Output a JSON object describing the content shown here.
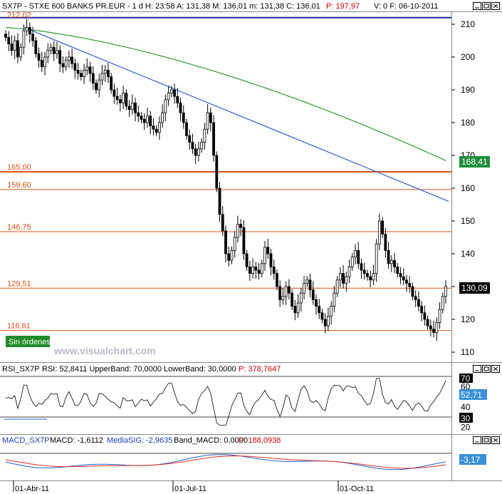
{
  "main_panel": {
    "header": {
      "symbol": "SX7P",
      "name": "STXE 600 BANKS PR.EUR",
      "timeframe": "1 d",
      "time": "H: 23:58",
      "high": "A: 131,38",
      "mid": "M: 136,01",
      "low": "m: 131,38",
      "close": "C: 136,01",
      "points": "P: 197,97",
      "volume": "V: 0",
      "date": "F: 06-10-2011"
    },
    "header_text": "SX7P - STXE 600 BANKS PR.EUR - 1 d H: 23:58 A: 131,38 M: 136,01 m: 131,38 C: 136,01",
    "header_points": "P: 197,97",
    "header_tail": "V: 0  F: 06-10-2011",
    "watermark": "www.visualchart.com",
    "orders_badge": "Sin órdenes",
    "ma_label": "168,41",
    "price_label": "130,09",
    "colors": {
      "ma": "#2e9b2e",
      "trend": "#2f5fd0",
      "levels": "#e05018",
      "ma_badge": "#1f8f3a",
      "price_badge": "#000000"
    }
  },
  "rsi_panel": {
    "title": "RSI_SX7P",
    "params": "RSI: 52,8411  UpperBand: 70,0000  LowerBand: 30,0000",
    "points": "P: 378,7647",
    "value_label": "52,71",
    "upper_label": "70",
    "lower_label": "30",
    "colors": {
      "badge": "#3a90d8"
    }
  },
  "macd_panel": {
    "title": "MACD_SX7P",
    "macd": "MACD: -1,6112",
    "signal": "MediaSIG: -2,9635",
    "band": "Band_MACD: 0,0000",
    "points": "P: 188,0938",
    "value_label": "-3,17",
    "colors": {
      "macd": "#2060d0",
      "signal": "#e03020",
      "badge": "#3a90d8"
    }
  },
  "chart_data": [
    {
      "type": "candlestick",
      "title": "SX7P - STXE 600 BANKS PR.EUR - 1 d",
      "x_ticks": [
        "01-Abr-11",
        "01-Jul-11",
        "01-Oct-11"
      ],
      "ylim": [
        110,
        214
      ],
      "y_ticks": [
        110,
        120,
        130,
        140,
        150,
        160,
        170,
        180,
        190,
        200,
        210
      ],
      "horizontal_levels": [
        {
          "label": "212,02",
          "value": 212.02
        },
        {
          "label": "165,00",
          "value": 165.0
        },
        {
          "label": "159,60",
          "value": 159.6
        },
        {
          "label": "146,75",
          "value": 146.75
        },
        {
          "label": "129,51",
          "value": 129.51
        },
        {
          "label": "116,61",
          "value": 116.61
        }
      ],
      "close_approx": [
        206,
        204,
        202,
        205,
        200,
        203,
        208,
        209,
        207,
        205,
        201,
        199,
        197,
        200,
        202,
        203,
        201,
        202,
        198,
        197,
        199,
        200,
        198,
        196,
        195,
        194,
        196,
        197,
        195,
        192,
        190,
        193,
        195,
        196,
        194,
        190,
        188,
        187,
        186,
        189,
        185,
        184,
        186,
        183,
        182,
        181,
        180,
        182,
        179,
        178,
        177,
        180,
        183,
        187,
        189,
        190,
        188,
        186,
        183,
        180,
        176,
        174,
        172,
        170,
        172,
        174,
        178,
        183,
        180,
        170,
        160,
        152,
        147,
        140,
        138,
        141,
        145,
        149,
        148,
        140,
        136,
        134,
        136,
        135,
        134,
        137,
        142,
        140,
        136,
        134,
        130,
        126,
        127,
        130,
        128,
        124,
        122,
        125,
        128,
        131,
        132,
        129,
        126,
        124,
        122,
        120,
        118,
        121,
        124,
        128,
        132,
        134,
        131,
        133,
        136,
        139,
        141,
        137,
        135,
        134,
        133,
        132,
        134,
        143,
        150,
        146,
        141,
        137,
        138,
        136,
        134,
        133,
        132,
        131,
        130,
        127,
        126,
        124,
        122,
        120,
        118,
        117,
        116,
        119,
        123,
        127,
        130
      ],
      "moving_average": {
        "label": "168,41",
        "start": 209,
        "end": 168.41
      },
      "trendline": {
        "from": 209,
        "to": 156
      }
    },
    {
      "type": "line",
      "title": "RSI_SX7P",
      "ylim": [
        20,
        70
      ],
      "y_ticks": [
        20,
        30,
        40,
        50,
        60,
        70
      ],
      "bands": {
        "upper": 70,
        "lower": 30
      },
      "last_value": 52.71
    },
    {
      "type": "line",
      "title": "MACD_SX7P",
      "series": [
        {
          "name": "MACD",
          "last": -1.6112
        },
        {
          "name": "MediaSIG",
          "last": -2.9635
        }
      ],
      "band": 0,
      "last_label": "-3,17"
    }
  ]
}
